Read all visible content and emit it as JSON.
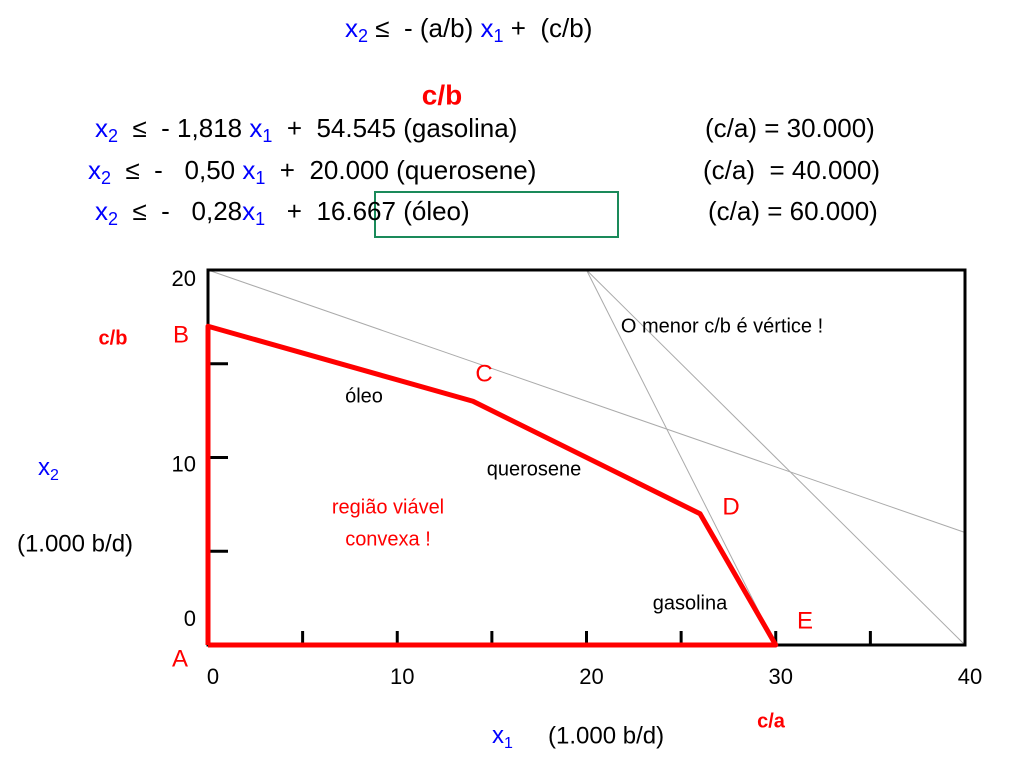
{
  "header": [
    "x",
    "2",
    " ≤  - (a/b) ",
    "x",
    "1",
    " +  (c/b)"
  ],
  "section_title": "c/b",
  "equations": [
    {
      "left": [
        "x",
        "2",
        "  ≤  - 1,818 ",
        "x",
        "1",
        "  +  54.545 (gasolina)"
      ],
      "right": "(c/a) = 30.000)"
    },
    {
      "left": [
        "x",
        "2",
        "  ≤  -   0,50 ",
        "x",
        "1",
        "  +  20.000 (querosene)"
      ],
      "right": "(c/a)  = 40.000)"
    },
    {
      "left": [
        "x",
        "2",
        "  ≤  -   0,28",
        "x",
        "1",
        "   +  ",
        "16.667 (óleo)"
      ],
      "right": "(c/a) = 60.000)"
    }
  ],
  "chart_data": {
    "type": "line",
    "region": {
      "x": [
        0,
        0,
        14,
        26,
        30,
        0
      ],
      "values": [
        0,
        17,
        13,
        7,
        0,
        0
      ],
      "color": "#ff0000"
    },
    "ref_lines": [
      {
        "x": [
          0,
          40
        ],
        "values": [
          20,
          6
        ]
      },
      {
        "x": [
          20,
          40
        ],
        "values": [
          20,
          0
        ]
      },
      {
        "x": [
          20,
          30
        ],
        "values": [
          20,
          0
        ]
      }
    ],
    "ref_color": "#aaaaaa",
    "point_labels": [
      "A",
      "B",
      "C",
      "D",
      "E"
    ],
    "annotations": [
      "O menor c/b é vértice !",
      "óleo",
      "querosene",
      "gasolina",
      "região viável",
      "convexa !"
    ],
    "xlim": [
      0,
      40
    ],
    "xticks": [
      0,
      10,
      20,
      30,
      40
    ],
    "xminor": [
      5,
      15,
      25,
      35
    ],
    "ylim": [
      0,
      20
    ],
    "yticks": [
      0,
      10,
      20
    ],
    "yminor": [
      5,
      15
    ],
    "x_label": [
      "x",
      "1",
      "(1.000 b/d)"
    ],
    "y_label": [
      "x",
      "2",
      "(1.000 b/d)"
    ],
    "y_mark": "c/b",
    "x_mark": "c/a"
  }
}
